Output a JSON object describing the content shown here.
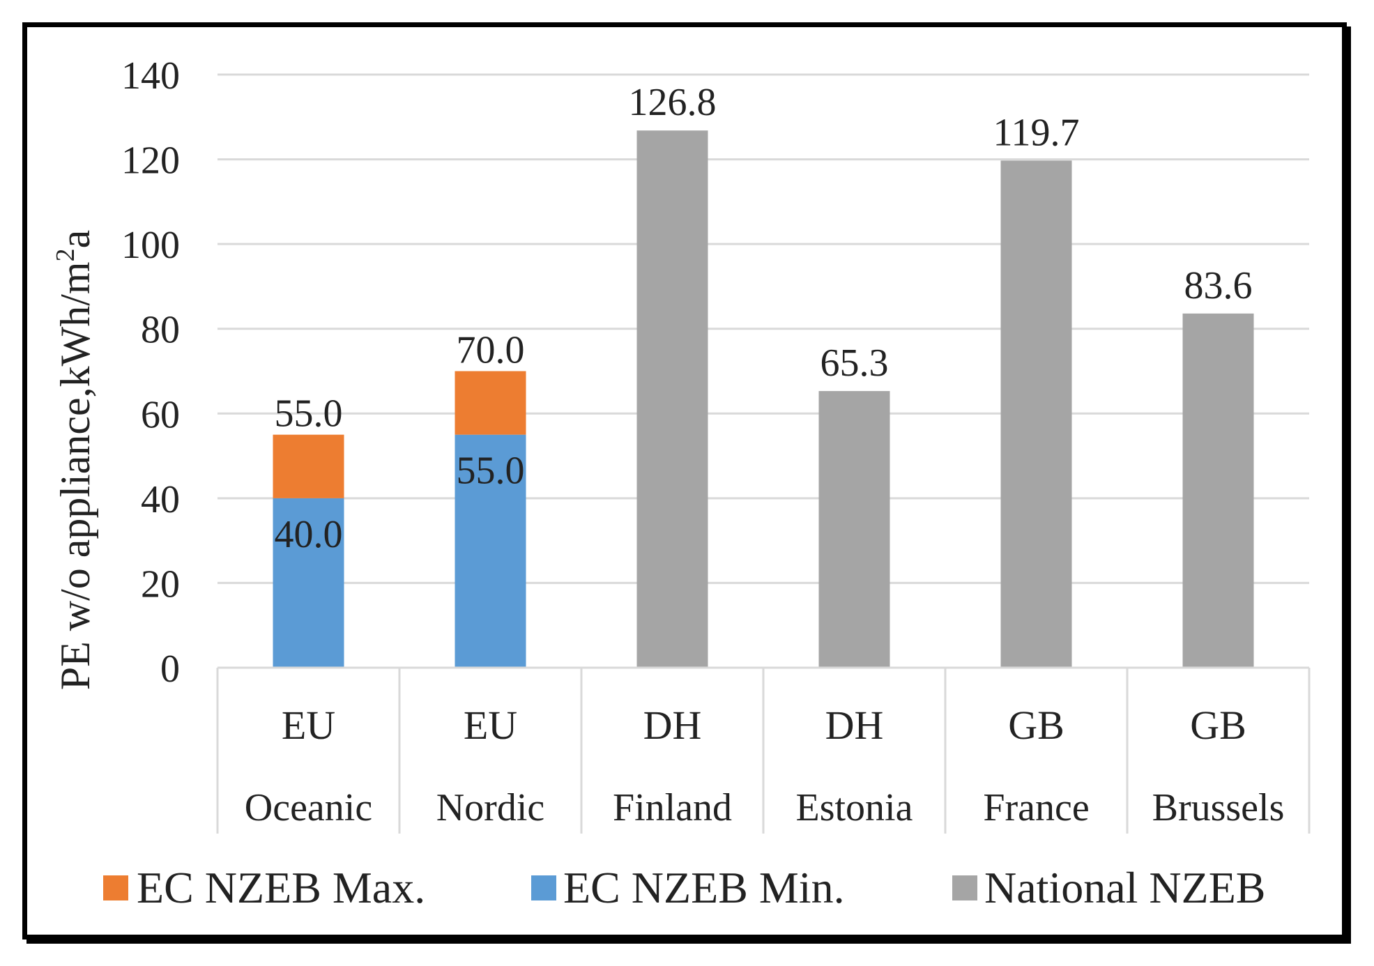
{
  "chart_data": {
    "type": "bar",
    "stacked": true,
    "title": "",
    "xlabel": "",
    "ylabel": "PE w/o appliance,kWh/m²a",
    "ylabel_base": "PE w/o appliance,kWh/m",
    "ylabel_sup": "2",
    "ylabel_tail": "a",
    "ylim": [
      0,
      140
    ],
    "yticks": [
      "0",
      "20",
      "40",
      "60",
      "80",
      "100",
      "120",
      "140"
    ],
    "grid": true,
    "legend_position": "bottom",
    "categories": [
      {
        "top": "EU",
        "bottom": "Oceanic"
      },
      {
        "top": "EU",
        "bottom": "Nordic"
      },
      {
        "top": "DH",
        "bottom": "Finland"
      },
      {
        "top": "DH",
        "bottom": "Estonia"
      },
      {
        "top": "GB",
        "bottom": "France"
      },
      {
        "top": "GB",
        "bottom": "Brussels"
      }
    ],
    "series": [
      {
        "name": "EC NZEB Max.",
        "color": "#ED7D31",
        "values": [
          55.0,
          70.0,
          null,
          null,
          null,
          null
        ],
        "labels": [
          "55.0",
          "70.0",
          null,
          null,
          null,
          null
        ]
      },
      {
        "name": "EC NZEB Min.",
        "color": "#5B9BD5",
        "values": [
          40.0,
          55.0,
          null,
          null,
          null,
          null
        ],
        "labels": [
          "40.0",
          "55.0",
          null,
          null,
          null,
          null
        ]
      },
      {
        "name": "National NZEB",
        "color": "#A5A5A5",
        "values": [
          null,
          null,
          126.8,
          65.3,
          119.7,
          83.6
        ],
        "labels": [
          null,
          null,
          "126.8",
          "65.3",
          "119.7",
          "83.6"
        ]
      }
    ]
  }
}
